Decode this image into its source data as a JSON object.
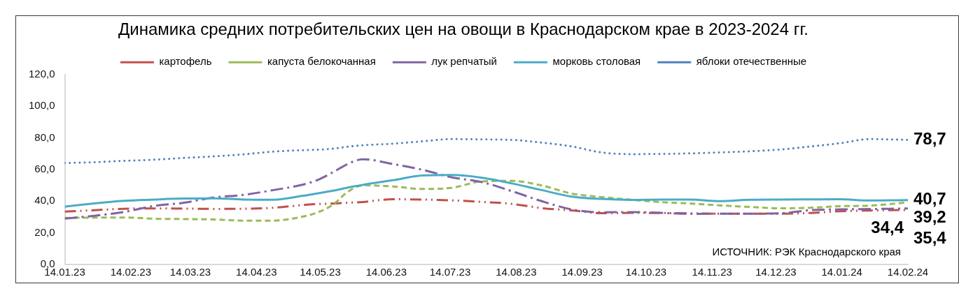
{
  "chart_data": {
    "type": "line",
    "title": "Динамика средних потребительских цен на овощи в Краснодарском крае в 2023-2024 гг.",
    "annotations": [
      "ИСТОЧНИК: РЭК Краснодарского края"
    ],
    "legend": "top",
    "x": [
      "2023-01-14",
      "2023-01-28",
      "2023-02-11",
      "2023-02-25",
      "2023-03-11",
      "2023-03-25",
      "2023-04-08",
      "2023-04-22",
      "2023-05-06",
      "2023-05-13",
      "2023-05-20",
      "2023-05-27",
      "2023-06-03",
      "2023-06-17",
      "2023-07-01",
      "2023-07-15",
      "2023-07-29",
      "2023-08-12",
      "2023-08-26",
      "2023-09-09",
      "2023-09-23",
      "2023-10-07",
      "2023-10-21",
      "2023-11-04",
      "2023-11-18",
      "2023-12-02",
      "2023-12-16",
      "2023-12-30",
      "2024-01-13",
      "2024-01-27",
      "2024-02-14"
    ],
    "xlim": [
      "2023-01-14",
      "2024-02-14"
    ],
    "xticks": [
      {
        "value": "2023-01-14",
        "label": "14.01.23"
      },
      {
        "value": "2023-02-14",
        "label": "14.02.23"
      },
      {
        "value": "2023-03-14",
        "label": "14.03.23"
      },
      {
        "value": "2023-04-14",
        "label": "14.04.23"
      },
      {
        "value": "2023-05-14",
        "label": "14.05.23"
      },
      {
        "value": "2023-06-14",
        "label": "14.06.23"
      },
      {
        "value": "2023-07-14",
        "label": "14.07.23"
      },
      {
        "value": "2023-08-14",
        "label": "14.08.23"
      },
      {
        "value": "2023-09-14",
        "label": "14.09.23"
      },
      {
        "value": "2023-10-14",
        "label": "14.10.23"
      },
      {
        "value": "2023-11-14",
        "label": "14.11.23"
      },
      {
        "value": "2023-12-14",
        "label": "14.12.23"
      },
      {
        "value": "2024-01-14",
        "label": "14.01.24"
      },
      {
        "value": "2024-02-14",
        "label": "14.02.24"
      }
    ],
    "ylim": [
      0,
      120
    ],
    "yticks": [
      {
        "value": 0,
        "label": "0,0"
      },
      {
        "value": 20,
        "label": "20,0"
      },
      {
        "value": 40,
        "label": "40,0"
      },
      {
        "value": 60,
        "label": "60,0"
      },
      {
        "value": 80,
        "label": "80,0"
      },
      {
        "value": 100,
        "label": "100,0"
      },
      {
        "value": 120,
        "label": "120,0"
      }
    ],
    "series": [
      {
        "name": "картофель",
        "color": "#c0504d",
        "line_style": "dashed",
        "values": [
          33.4,
          34.3,
          35.2,
          35.4,
          35.3,
          35.1,
          35.2,
          35.8,
          37.6,
          38.2,
          38.5,
          39.0,
          39.5,
          41.2,
          41.0,
          40.5,
          39.5,
          38.3,
          35.6,
          34.2,
          32.4,
          32.6,
          32.5,
          32.3,
          32.1,
          32.1,
          32.1,
          32.5,
          33.6,
          34.1,
          34.4
        ],
        "value_labels": [
          null,
          null,
          null,
          null,
          null,
          null,
          null,
          null,
          null,
          null,
          null,
          null,
          null,
          null,
          null,
          null,
          null,
          null,
          null,
          null,
          null,
          null,
          null,
          null,
          null,
          null,
          null,
          null,
          null,
          null,
          "34,4"
        ]
      },
      {
        "name": "капуста белокочанная",
        "color": "#9bbb59",
        "line_style": "dashed",
        "values": [
          29.4,
          29.6,
          29.7,
          28.9,
          28.7,
          28.4,
          27.7,
          27.7,
          30.3,
          33.0,
          37.8,
          46.0,
          50.0,
          49.3,
          47.7,
          48.5,
          52.5,
          52.8,
          49.9,
          44.8,
          42.6,
          40.9,
          39.4,
          38.5,
          37.3,
          36.3,
          35.5,
          35.8,
          36.8,
          37.2,
          39.2
        ],
        "value_labels": [
          null,
          null,
          null,
          null,
          null,
          null,
          null,
          null,
          null,
          null,
          null,
          null,
          null,
          null,
          null,
          null,
          null,
          null,
          null,
          null,
          null,
          null,
          null,
          null,
          null,
          null,
          null,
          null,
          null,
          null,
          "39,2"
        ]
      },
      {
        "name": "лук репчатый",
        "color": "#8064a2",
        "line_style": "dashed",
        "values": [
          29.0,
          30.8,
          33.2,
          37.0,
          39.0,
          42.3,
          44.0,
          47.0,
          50.5,
          53.5,
          58.3,
          63.5,
          66.5,
          63.5,
          59.8,
          55.0,
          52.0,
          46.3,
          40.0,
          34.8,
          33.0,
          33.1,
          32.6,
          32.0,
          32.1,
          32.1,
          32.3,
          34.3,
          34.8,
          35.0,
          35.4
        ],
        "value_labels": [
          null,
          null,
          null,
          null,
          null,
          null,
          null,
          null,
          null,
          null,
          null,
          null,
          null,
          null,
          null,
          null,
          null,
          null,
          null,
          null,
          null,
          null,
          null,
          null,
          null,
          null,
          null,
          null,
          null,
          null,
          "35,4"
        ]
      },
      {
        "name": "морковь столовая",
        "color": "#4bacc6",
        "line_style": "solid",
        "values": [
          36.5,
          38.6,
          40.2,
          41.0,
          41.7,
          41.8,
          41.0,
          40.9,
          43.4,
          45.0,
          46.6,
          48.6,
          50.3,
          53.2,
          56.2,
          56.5,
          54.8,
          51.2,
          47.0,
          42.9,
          41.4,
          40.8,
          41.0,
          41.0,
          40.0,
          40.9,
          41.0,
          41.1,
          41.2,
          40.4,
          40.7
        ],
        "value_labels": [
          null,
          null,
          null,
          null,
          null,
          null,
          null,
          null,
          null,
          null,
          null,
          null,
          null,
          null,
          null,
          null,
          null,
          null,
          null,
          null,
          null,
          null,
          null,
          null,
          null,
          null,
          null,
          null,
          null,
          null,
          "40,7"
        ]
      },
      {
        "name": "яблоки отечественные",
        "color": "#4f81bd",
        "line_style": "dotted",
        "values": [
          64.1,
          64.6,
          65.5,
          66.2,
          67.3,
          68.3,
          69.6,
          71.3,
          72.2,
          72.5,
          73.2,
          74.4,
          75.3,
          76.3,
          77.8,
          79.2,
          79.0,
          78.7,
          77.0,
          74.6,
          70.8,
          69.7,
          69.8,
          70.2,
          70.8,
          71.5,
          72.6,
          74.5,
          76.6,
          79.2,
          78.7
        ],
        "value_labels": [
          null,
          null,
          null,
          null,
          null,
          null,
          null,
          null,
          null,
          null,
          null,
          null,
          null,
          null,
          null,
          null,
          null,
          null,
          null,
          null,
          null,
          null,
          null,
          null,
          null,
          null,
          null,
          null,
          null,
          null,
          "78,7"
        ]
      }
    ]
  }
}
